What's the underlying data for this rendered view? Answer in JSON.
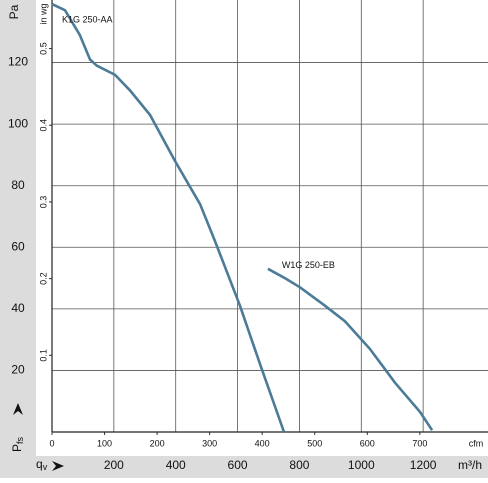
{
  "chart_data": {
    "type": "line",
    "y_label": "Pa",
    "y2_label": "in wg",
    "x_label": "m³/h",
    "x2_label": "cfm",
    "x_symbol": {
      "main": "q",
      "sub": "v"
    },
    "y_symbol": {
      "main": "P",
      "sub": "fs"
    },
    "xlim": [
      0,
      1400
    ],
    "xticks": [
      200,
      400,
      600,
      800,
      1000,
      1200
    ],
    "x2lim": [
      0,
      824
    ],
    "x2ticks": [
      0,
      100,
      200,
      300,
      400,
      500,
      600,
      700
    ],
    "ylim": [
      0,
      140
    ],
    "yticks": [
      20,
      40,
      60,
      80,
      100,
      120
    ],
    "y2lim": [
      0,
      0.562
    ],
    "y2ticks": [
      0.1,
      0.2,
      0.3,
      0.4,
      0.5
    ],
    "grid": true,
    "series": [
      {
        "name": "K1G 250-AA",
        "color": "#4b7b97",
        "x": [
          0,
          42,
          90,
          123,
          145,
          204,
          252,
          317,
          398,
          479,
          527,
          608,
          673,
          750
        ],
        "values": [
          139,
          137,
          129,
          121,
          119,
          116,
          111,
          103,
          88,
          74,
          62,
          41,
          22,
          0
        ]
      },
      {
        "name": "W1G 250-EB",
        "color": "#4b7b97",
        "x": [
          698,
          753,
          802,
          883,
          947,
          1028,
          1109,
          1190,
          1229
        ],
        "values": [
          53,
          50,
          47,
          41,
          36,
          27,
          16,
          6.5,
          0.6
        ]
      }
    ]
  }
}
